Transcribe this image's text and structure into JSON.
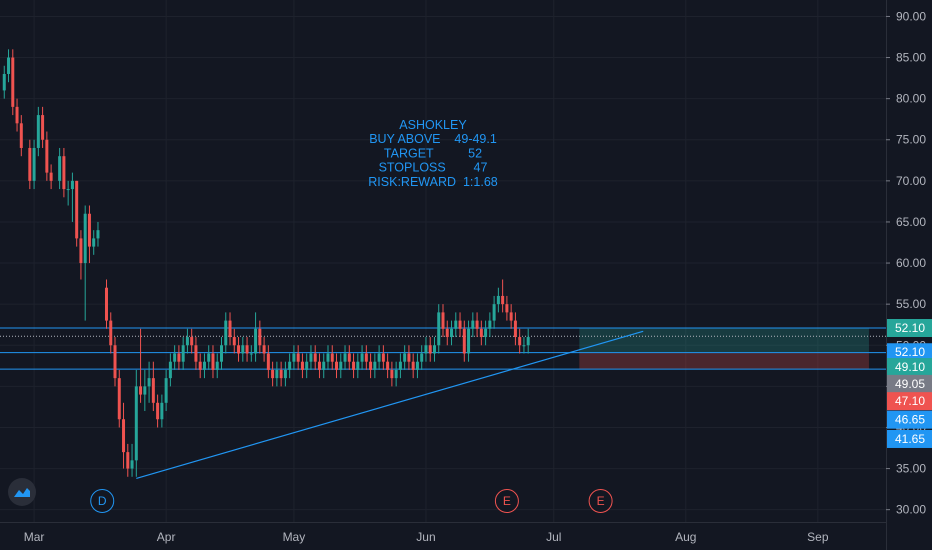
{
  "chart_data": {
    "type": "candlestick",
    "symbol": "ASHOKLEY",
    "title_lines": [
      "ASHOKLEY",
      "BUY ABOVE    49-49.1",
      "TARGET          52",
      "STOPLOSS        47",
      "RISK:REWARD  1:1.68"
    ],
    "y_ticks": [
      30,
      35,
      40,
      45,
      50,
      55,
      60,
      65,
      70,
      75,
      80,
      85,
      90
    ],
    "y_tick_labels": [
      "30.00",
      "35.00",
      "40.00",
      "45.00",
      "50.00",
      "55.00",
      "60.00",
      "65.00",
      "70.00",
      "75.00",
      "80.00",
      "85.00",
      "90.00"
    ],
    "ylim": [
      28.5,
      92
    ],
    "x_labels": [
      "Mar",
      "Apr",
      "May",
      "Jun",
      "Jul",
      "Aug",
      "Sep"
    ],
    "x_label_days": [
      0,
      31,
      61,
      92,
      122,
      153,
      184
    ],
    "xlim": [
      -8,
      200
    ],
    "horizontal_lines": [
      52.1,
      49.1,
      47.1
    ],
    "last_price": 51.1,
    "trend_line": [
      {
        "day": 24,
        "price": 33.8
      },
      {
        "day": 143,
        "price": 51.7
      }
    ],
    "position_box": {
      "start_day": 128,
      "end_day": 196,
      "entry": 49.1,
      "target": 52.1,
      "stop": 47.1
    },
    "price_labels": [
      {
        "value": "52.10",
        "price": 52.1,
        "color": "#26a69a"
      },
      {
        "value": "52.10",
        "price": 49.15,
        "color": "#2196f3"
      },
      {
        "value": "49.10",
        "price": 47.35,
        "color": "#26a69a"
      },
      {
        "value": "49.05",
        "price": 45.3,
        "color": "#787b86"
      },
      {
        "value": "47.10",
        "price": 43.2,
        "color": "#ef5350"
      },
      {
        "value": "46.65",
        "price": 40.95,
        "color": "#2196f3"
      },
      {
        "value": "41.65",
        "price": 38.6,
        "color": "#2196f3"
      }
    ],
    "events": [
      {
        "letter": "D",
        "day": 16,
        "color": "#2196f3"
      },
      {
        "letter": "E",
        "day": 111,
        "color": "#ef5350"
      },
      {
        "letter": "E",
        "day": 133,
        "color": "#ef5350"
      }
    ],
    "candles": [
      [
        -7,
        81,
        84,
        80,
        83
      ],
      [
        -6,
        83,
        86,
        82,
        85
      ],
      [
        -5,
        85,
        86,
        78,
        79
      ],
      [
        -4,
        79,
        80,
        76,
        77
      ],
      [
        -3,
        77,
        78,
        73,
        74
      ],
      [
        -1,
        74,
        75,
        69,
        70
      ],
      [
        0,
        70,
        75,
        69,
        74
      ],
      [
        1,
        74,
        79,
        73,
        78
      ],
      [
        2,
        78,
        79,
        74,
        75
      ],
      [
        3,
        75,
        76,
        70,
        71
      ],
      [
        4,
        71,
        72,
        69,
        70
      ],
      [
        6,
        70,
        74,
        69,
        73
      ],
      [
        7,
        73,
        74,
        68,
        69
      ],
      [
        8,
        69,
        70,
        67,
        69
      ],
      [
        9,
        69,
        71,
        65,
        70
      ],
      [
        10,
        70,
        70,
        62,
        63
      ],
      [
        11,
        63,
        64,
        58,
        60
      ],
      [
        12,
        60,
        67,
        53,
        66
      ],
      [
        13,
        66,
        67,
        60,
        62
      ],
      [
        14,
        62,
        64,
        61,
        63
      ],
      [
        15,
        63,
        65,
        62,
        64
      ],
      [
        17,
        57,
        58,
        52,
        53
      ],
      [
        18,
        53,
        54,
        49,
        50
      ],
      [
        19,
        50,
        51,
        45,
        46
      ],
      [
        20,
        46,
        47,
        40,
        41
      ],
      [
        21,
        41,
        43,
        35,
        37
      ],
      [
        22,
        37,
        38,
        34,
        35
      ],
      [
        23,
        35,
        38,
        34,
        36
      ],
      [
        24,
        36,
        47,
        34,
        45
      ],
      [
        25,
        45,
        52,
        43,
        44
      ],
      [
        26,
        44,
        47,
        42,
        45
      ],
      [
        27,
        45,
        48,
        43,
        46
      ],
      [
        28,
        46,
        48,
        42,
        43
      ],
      [
        29,
        43,
        44,
        40,
        41
      ],
      [
        30,
        41,
        44,
        40,
        43
      ],
      [
        31,
        43,
        47,
        42,
        46
      ],
      [
        32,
        46,
        49,
        45,
        48
      ],
      [
        33,
        48,
        50,
        47,
        49
      ],
      [
        34,
        49,
        50,
        47,
        48
      ],
      [
        35,
        48,
        51,
        47,
        50
      ],
      [
        36,
        50,
        52,
        49,
        51
      ],
      [
        37,
        51,
        52,
        49,
        50
      ],
      [
        38,
        50,
        51,
        47,
        48
      ],
      [
        39,
        48,
        49,
        46,
        47
      ],
      [
        40,
        47,
        49,
        46,
        48
      ],
      [
        41,
        48,
        50,
        47,
        49
      ],
      [
        42,
        49,
        50,
        46,
        47
      ],
      [
        43,
        47,
        49,
        46,
        48
      ],
      [
        44,
        48,
        51,
        47,
        50
      ],
      [
        45,
        50,
        54,
        49,
        53
      ],
      [
        46,
        53,
        54,
        50,
        51
      ],
      [
        47,
        51,
        52,
        49,
        50
      ],
      [
        48,
        50,
        51,
        48,
        49
      ],
      [
        49,
        49,
        51,
        48,
        50
      ],
      [
        50,
        50,
        51,
        48,
        49
      ],
      [
        51,
        49,
        50,
        48,
        49
      ],
      [
        52,
        49,
        54,
        48,
        52
      ],
      [
        53,
        52,
        53,
        49,
        50
      ],
      [
        54,
        50,
        51,
        48,
        49
      ],
      [
        55,
        49,
        50,
        46,
        47
      ],
      [
        56,
        47,
        48,
        45,
        46
      ],
      [
        57,
        46,
        48,
        45,
        47
      ],
      [
        58,
        47,
        48,
        45,
        46
      ],
      [
        59,
        46,
        48,
        45,
        47
      ],
      [
        60,
        47,
        49,
        46,
        48
      ],
      [
        61,
        48,
        50,
        47,
        49
      ],
      [
        62,
        49,
        50,
        47,
        48
      ],
      [
        63,
        48,
        49,
        46,
        47
      ],
      [
        64,
        47,
        49,
        46,
        48
      ],
      [
        65,
        48,
        50,
        47,
        49
      ],
      [
        66,
        49,
        50,
        47,
        48
      ],
      [
        67,
        48,
        49,
        46,
        47
      ],
      [
        68,
        47,
        49,
        46,
        48
      ],
      [
        69,
        48,
        50,
        47,
        49
      ],
      [
        70,
        49,
        50,
        47,
        48
      ],
      [
        71,
        48,
        49,
        46,
        47
      ],
      [
        72,
        47,
        49,
        46,
        48
      ],
      [
        73,
        48,
        50,
        47,
        49
      ],
      [
        74,
        49,
        50,
        47,
        48
      ],
      [
        75,
        48,
        49,
        46,
        47
      ],
      [
        76,
        47,
        49,
        46,
        48
      ],
      [
        77,
        48,
        50,
        47,
        49
      ],
      [
        78,
        49,
        50,
        47,
        48
      ],
      [
        79,
        48,
        49,
        46,
        47
      ],
      [
        80,
        47,
        49,
        46,
        48
      ],
      [
        81,
        48,
        50,
        47,
        49
      ],
      [
        82,
        49,
        50,
        47,
        48
      ],
      [
        83,
        48,
        49,
        46,
        47
      ],
      [
        84,
        47,
        48,
        45,
        46
      ],
      [
        85,
        46,
        48,
        45,
        47
      ],
      [
        86,
        47,
        49,
        46,
        48
      ],
      [
        87,
        48,
        50,
        47,
        49
      ],
      [
        88,
        49,
        50,
        47,
        48
      ],
      [
        89,
        48,
        49,
        46,
        47
      ],
      [
        90,
        47,
        49,
        46,
        48
      ],
      [
        91,
        48,
        50,
        47,
        49
      ],
      [
        92,
        49,
        51,
        48,
        50
      ],
      [
        93,
        50,
        51,
        48,
        49
      ],
      [
        94,
        49,
        51,
        48,
        50
      ],
      [
        95,
        50,
        55,
        49,
        54
      ],
      [
        96,
        54,
        55,
        51,
        52
      ],
      [
        97,
        52,
        53,
        50,
        51
      ],
      [
        98,
        51,
        53,
        50,
        52
      ],
      [
        99,
        52,
        54,
        51,
        53
      ],
      [
        100,
        53,
        54,
        51,
        52
      ],
      [
        101,
        52,
        53,
        48,
        49
      ],
      [
        102,
        49,
        53,
        48,
        52
      ],
      [
        103,
        52,
        54,
        51,
        53
      ],
      [
        104,
        53,
        54,
        51,
        52
      ],
      [
        105,
        52,
        53,
        50,
        51
      ],
      [
        106,
        51,
        53,
        50,
        52
      ],
      [
        107,
        52,
        54,
        51,
        53
      ],
      [
        108,
        53,
        56,
        52,
        55
      ],
      [
        109,
        55,
        57,
        54,
        56
      ],
      [
        110,
        56,
        58,
        54,
        55
      ],
      [
        111,
        55,
        56,
        53,
        54
      ],
      [
        112,
        54,
        55,
        52,
        53
      ],
      [
        113,
        53,
        54,
        50,
        51
      ],
      [
        114,
        51,
        52,
        49,
        50
      ],
      [
        115,
        50,
        51,
        49,
        50
      ],
      [
        116,
        50,
        52,
        49,
        51
      ]
    ]
  }
}
